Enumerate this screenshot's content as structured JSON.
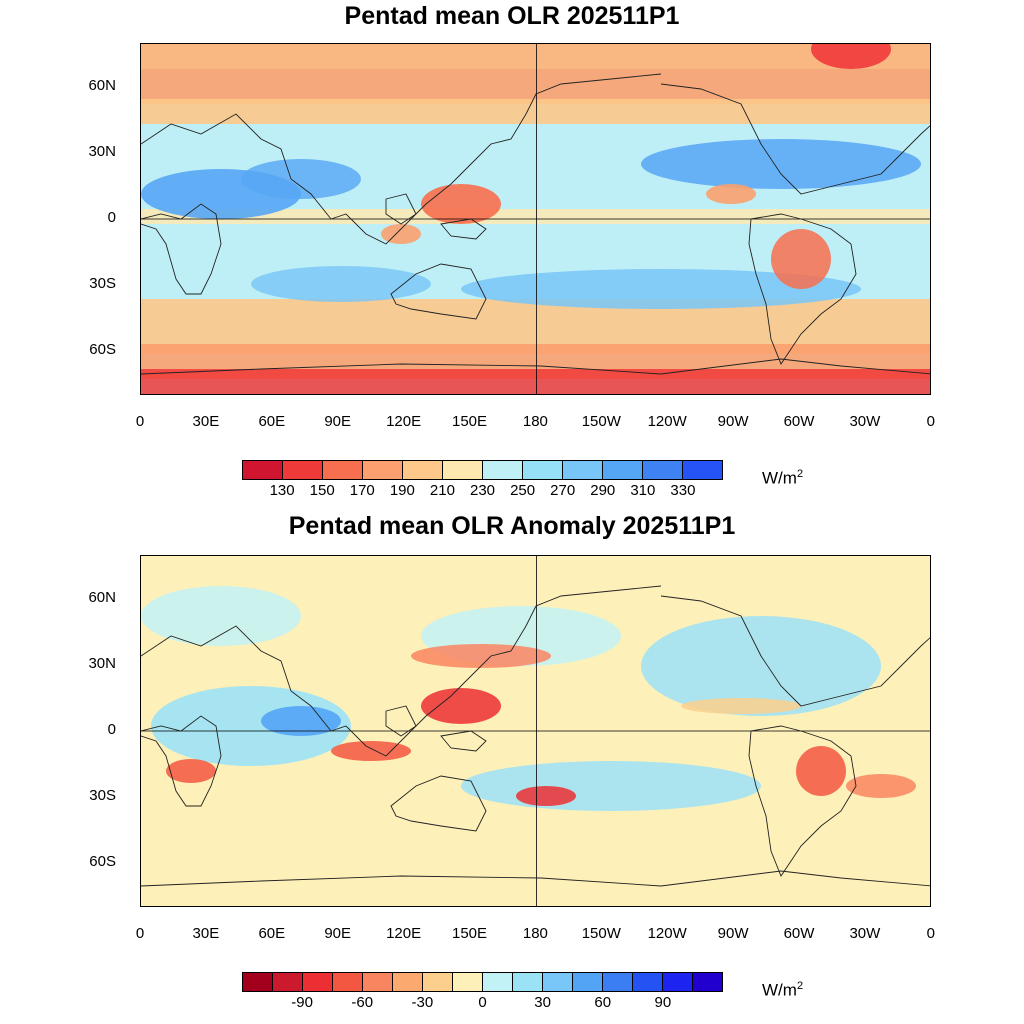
{
  "maps": [
    {
      "title": "Pentad mean OLR 202511P1",
      "unit": "W/m",
      "unit_sup": "2",
      "colorbar_labels": [
        "130",
        "150",
        "170",
        "190",
        "210",
        "230",
        "250",
        "270",
        "290",
        "310",
        "330"
      ],
      "colorbar_colors": [
        "#d01530",
        "#ef3a3a",
        "#f86f4f",
        "#fba06e",
        "#fdc889",
        "#fde9b0",
        "#bff0f5",
        "#96e0f7",
        "#78c6f8",
        "#56a6f6",
        "#3f82f4",
        "#2653f5"
      ]
    },
    {
      "title": "Pentad mean OLR Anomaly 202511P1",
      "unit": "W/m",
      "unit_sup": "2",
      "colorbar_labels": [
        "-90",
        "-60",
        "-30",
        "0",
        "30",
        "60",
        "90"
      ],
      "colorbar_colors": [
        "#a3001e",
        "#cb1a2d",
        "#ec2f33",
        "#f35741",
        "#f98560",
        "#fba96f",
        "#fccf8c",
        "#fdf0b9",
        "#c3f2f6",
        "#9ce2f7",
        "#78c7f8",
        "#54a4f6",
        "#3b7df3",
        "#2553f3",
        "#1e24ef",
        "#2100cf"
      ]
    }
  ],
  "axes": {
    "lon_labels": [
      "0",
      "30E",
      "60E",
      "90E",
      "120E",
      "150E",
      "180",
      "150W",
      "120W",
      "90W",
      "60W",
      "30W",
      "0"
    ],
    "lat_labels": [
      "60N",
      "30N",
      "0",
      "30S",
      "60S"
    ]
  }
}
